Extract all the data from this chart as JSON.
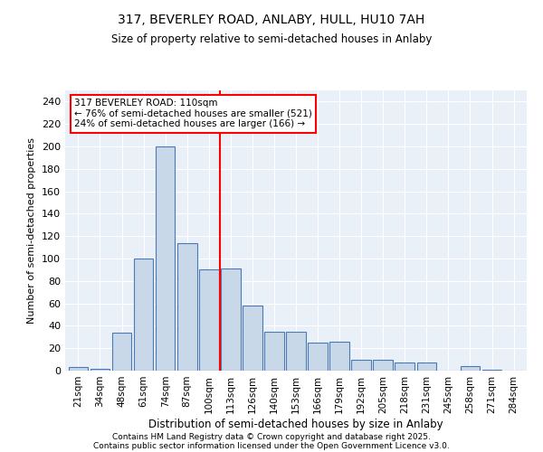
{
  "title": "317, BEVERLEY ROAD, ANLABY, HULL, HU10 7AH",
  "subtitle": "Size of property relative to semi-detached houses in Anlaby",
  "xlabel": "Distribution of semi-detached houses by size in Anlaby",
  "ylabel": "Number of semi-detached properties",
  "bar_labels": [
    "21sqm",
    "34sqm",
    "48sqm",
    "61sqm",
    "74sqm",
    "87sqm",
    "100sqm",
    "113sqm",
    "126sqm",
    "140sqm",
    "153sqm",
    "166sqm",
    "179sqm",
    "192sqm",
    "205sqm",
    "218sqm",
    "231sqm",
    "245sqm",
    "258sqm",
    "271sqm",
    "284sqm"
  ],
  "bar_values": [
    3,
    2,
    34,
    100,
    200,
    114,
    90,
    91,
    58,
    35,
    35,
    25,
    26,
    10,
    10,
    7,
    7,
    0,
    4,
    1,
    0
  ],
  "bar_color": "#c8d8e8",
  "bar_edge_color": "#4a7ab5",
  "vline_color": "red",
  "annotation_title": "317 BEVERLEY ROAD: 110sqm",
  "annotation_line1": "← 76% of semi-detached houses are smaller (521)",
  "annotation_line2": "24% of semi-detached houses are larger (166) →",
  "ylim": [
    0,
    250
  ],
  "yticks": [
    0,
    20,
    40,
    60,
    80,
    100,
    120,
    140,
    160,
    180,
    200,
    220,
    240
  ],
  "bg_color": "#eaf0f8",
  "footer1": "Contains HM Land Registry data © Crown copyright and database right 2025.",
  "footer2": "Contains public sector information licensed under the Open Government Licence v3.0."
}
